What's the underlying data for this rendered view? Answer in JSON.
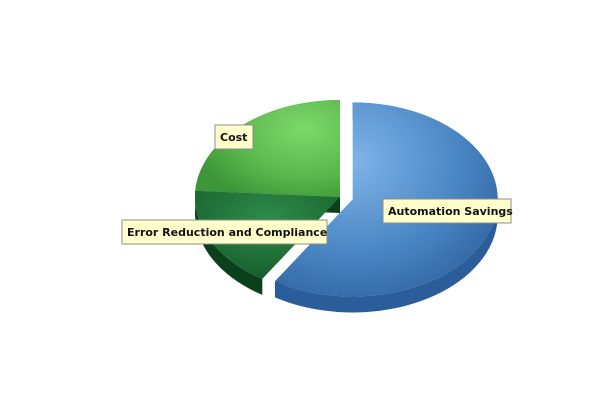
{
  "chart_data": {
    "type": "pie",
    "style": "3d-exploded",
    "title": "",
    "slices": [
      {
        "label": "Automation Savings",
        "value": 59,
        "color": "#4a86c4",
        "exploded": true
      },
      {
        "label": "Error Reduction and Compliance",
        "value": 17,
        "color": "#1c6a33",
        "exploded": false
      },
      {
        "label": "Cost",
        "value": 24,
        "color": "#59b84d",
        "exploded": false
      }
    ],
    "legend": "none",
    "data_labels": "callout-boxes"
  }
}
